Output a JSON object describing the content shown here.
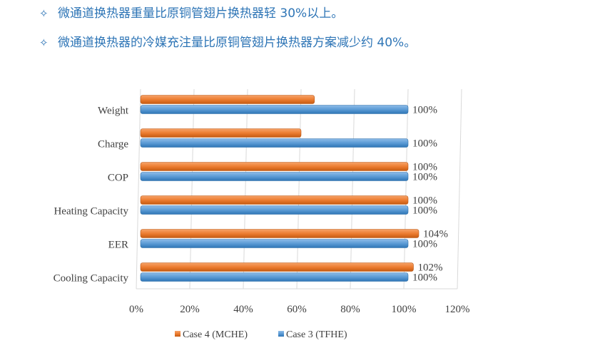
{
  "bullets": [
    {
      "mark": "✧",
      "text": "微通道换热器重量比原铜管翅片换热器轻 30%以上。"
    },
    {
      "mark": "✧",
      "text": "微通道换热器的冷媒充注量比原铜管翅片换热器方案减少约 40%。"
    }
  ],
  "colors": {
    "text_blue": "#2E75B6",
    "case4": "#ED7D31",
    "case3": "#5B9BD5",
    "axis": "#D9D9D9"
  },
  "chart_data": {
    "type": "bar",
    "orientation": "horizontal",
    "title": "",
    "categories": [
      "Weight",
      "Charge",
      "COP",
      "Heating Capacity",
      "EER",
      "Cooling Capacity"
    ],
    "series": [
      {
        "name": "Case 4 (MCHE)",
        "color": "#ED7D31",
        "values": [
          65,
          60,
          100,
          100,
          104,
          102
        ],
        "labels": [
          "",
          "",
          "100%",
          "100%",
          "104%",
          "102%"
        ]
      },
      {
        "name": "Case 3 (TFHE)",
        "color": "#5B9BD5",
        "values": [
          100,
          100,
          100,
          100,
          100,
          100
        ],
        "labels": [
          "100%",
          "100%",
          "100%",
          "100%",
          "100%",
          "100%"
        ]
      }
    ],
    "x_ticks": [
      "0%",
      "20%",
      "40%",
      "60%",
      "80%",
      "100%",
      "120%"
    ],
    "xlim": [
      0,
      120
    ],
    "grid": true,
    "legend_position": "bottom"
  }
}
